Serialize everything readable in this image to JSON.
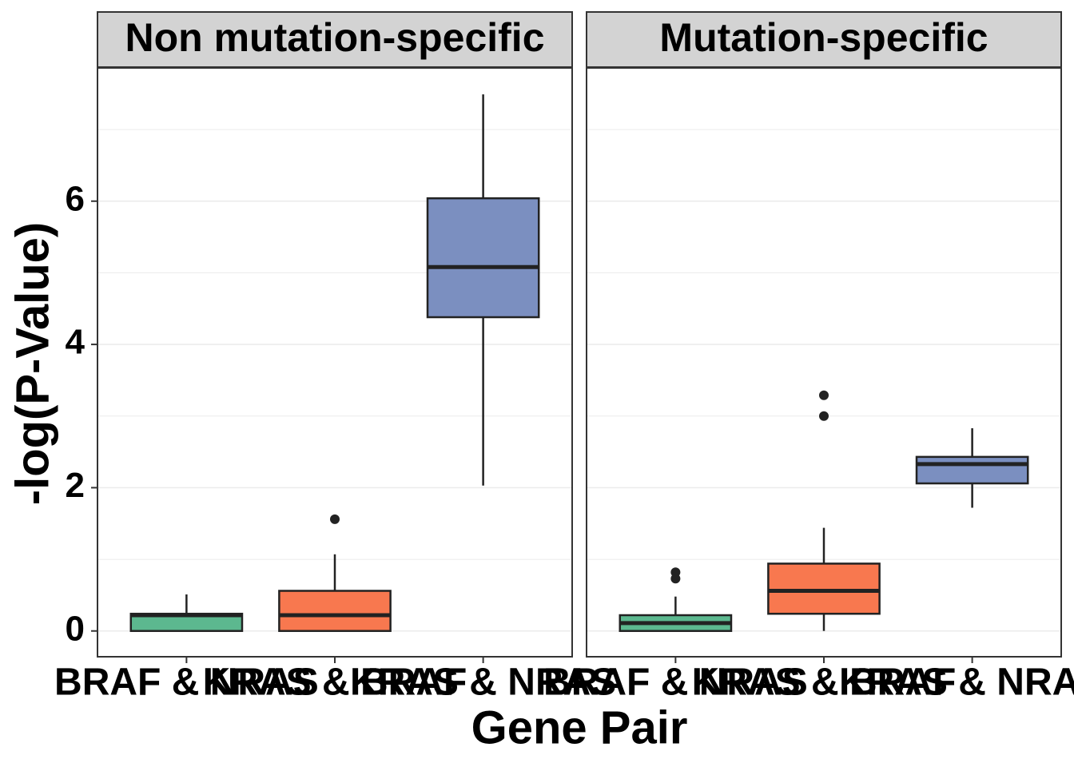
{
  "chart_data": {
    "type": "box",
    "x_label": "Gene Pair",
    "y_label": "-log(P-Value)",
    "categories": [
      "BRAF & NRAS",
      "KRAS & BRAF",
      "KRAS & NRAS"
    ],
    "colors": [
      "#5cb88f",
      "#f8784f",
      "#7b8fc0"
    ],
    "ylim": [
      -0.36,
      7.86
    ],
    "yticks": [
      0,
      2,
      4,
      6
    ],
    "minor_yticks": [
      1,
      3,
      5,
      7
    ],
    "grid": true,
    "facets": [
      {
        "title": "Non mutation-specific",
        "boxes": [
          {
            "whislo": 0,
            "q1": 0,
            "med": 0.22,
            "q3": 0.24,
            "whishi": 0.51,
            "outliers": []
          },
          {
            "whislo": 0,
            "q1": 0,
            "med": 0.22,
            "q3": 0.56,
            "whishi": 1.07,
            "outliers": [
              1.56
            ]
          },
          {
            "whislo": 2.03,
            "q1": 4.38,
            "med": 5.08,
            "q3": 6.04,
            "whishi": 7.49,
            "outliers": []
          }
        ]
      },
      {
        "title": "Mutation-specific",
        "boxes": [
          {
            "whislo": 0,
            "q1": 0,
            "med": 0.11,
            "q3": 0.22,
            "whishi": 0.48,
            "outliers": [
              0.82,
              0.73
            ]
          },
          {
            "whislo": 0,
            "q1": 0.24,
            "med": 0.56,
            "q3": 0.94,
            "whishi": 1.44,
            "outliers": [
              3.29,
              3.0
            ]
          },
          {
            "whislo": 1.72,
            "q1": 2.06,
            "med": 2.33,
            "q3": 2.43,
            "whishi": 2.83,
            "outliers": []
          }
        ]
      }
    ]
  }
}
